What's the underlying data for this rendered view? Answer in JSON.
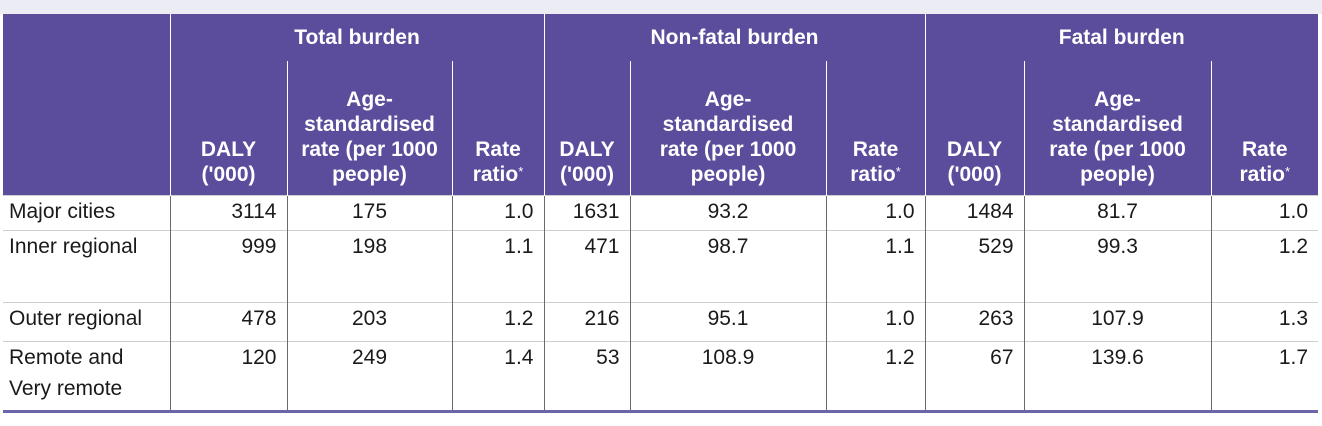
{
  "table": {
    "groups": [
      "Total burden",
      "Non-fatal burden",
      "Fatal burden"
    ],
    "subheaders": {
      "daly": [
        "DALY",
        "('000)"
      ],
      "asr": [
        "Age-",
        "standardised",
        "rate (per 1000",
        "people)"
      ],
      "ratio": [
        "Rate",
        "ratio"
      ],
      "footnote_marker": "*"
    },
    "rows": [
      {
        "label": "Major cities",
        "values": [
          "3114",
          "175",
          "1.0",
          "1631",
          "93.2",
          "1.0",
          "1484",
          "81.7",
          "1.0"
        ]
      },
      {
        "label": "Inner regional",
        "values": [
          "999",
          "198",
          "1.1",
          "471",
          "98.7",
          "1.1",
          "529",
          "99.3",
          "1.2"
        ]
      },
      {
        "label": "Outer regional",
        "values": [
          "478",
          "203",
          "1.2",
          "216",
          "95.1",
          "1.0",
          "263",
          "107.9",
          "1.3"
        ]
      },
      {
        "label": "Remote and\nVery remote",
        "label_lines": [
          "Remote and",
          "Very remote"
        ],
        "values": [
          "120",
          "249",
          "1.4",
          "53",
          "108.9",
          "1.2",
          "67",
          "139.6",
          "1.7"
        ]
      }
    ]
  }
}
